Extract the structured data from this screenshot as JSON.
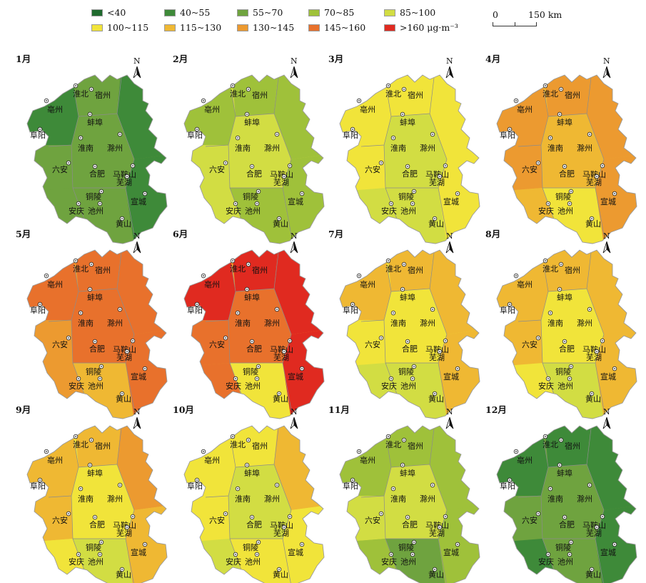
{
  "legend": {
    "items": [
      {
        "label": "<40",
        "color": "#1f6a2e"
      },
      {
        "label": "40~55",
        "color": "#3e8a39"
      },
      {
        "label": "55~70",
        "color": "#6fa33f"
      },
      {
        "label": "70~85",
        "color": "#9fc13a"
      },
      {
        "label": "85~100",
        "color": "#d2dd43"
      },
      {
        "label": "100~115",
        "color": "#f1e43a"
      },
      {
        "label": "115~130",
        "color": "#efb833"
      },
      {
        "label": "130~145",
        "color": "#ec9a30"
      },
      {
        "label": "145~160",
        "color": "#e8712c"
      },
      {
        "label": ">160 μg·m⁻³",
        "color": "#e02a20"
      }
    ]
  },
  "scale_bar": {
    "start": "0",
    "end": "150 km"
  },
  "north_label": "N",
  "cities": [
    "亳州",
    "淮北",
    "宿州",
    "阜阳",
    "蚌埠",
    "淮南",
    "滁州",
    "六安",
    "合肥",
    "马鞍山",
    "芜湖",
    "铜陵",
    "宣城",
    "安庆",
    "池州",
    "黄山"
  ],
  "months": [
    {
      "label": "1月",
      "base": 2,
      "zones": [
        1,
        2,
        1,
        2,
        2,
        1,
        2,
        2
      ]
    },
    {
      "label": "2月",
      "base": 4,
      "zones": [
        3,
        3,
        3,
        4,
        4,
        3,
        4,
        3
      ]
    },
    {
      "label": "3月",
      "base": 5,
      "zones": [
        5,
        5,
        5,
        5,
        4,
        5,
        4,
        4
      ]
    },
    {
      "label": "4月",
      "base": 6,
      "zones": [
        7,
        7,
        7,
        7,
        6,
        7,
        6,
        5
      ]
    },
    {
      "label": "5月",
      "base": 7,
      "zones": [
        8,
        8,
        8,
        7,
        8,
        8,
        7,
        6
      ]
    },
    {
      "label": "6月",
      "base": 7,
      "zones": [
        9,
        9,
        9,
        8,
        8,
        9,
        8,
        5
      ]
    },
    {
      "label": "7月",
      "base": 5,
      "zones": [
        6,
        6,
        6,
        5,
        5,
        6,
        4,
        4
      ]
    },
    {
      "label": "8月",
      "base": 6,
      "zones": [
        6,
        6,
        6,
        6,
        5,
        6,
        5,
        4
      ]
    },
    {
      "label": "9月",
      "base": 5,
      "zones": [
        6,
        6,
        7,
        6,
        5,
        6,
        5,
        4
      ]
    },
    {
      "label": "10月",
      "base": 5,
      "zones": [
        5,
        5,
        6,
        5,
        4,
        5,
        4,
        5
      ]
    },
    {
      "label": "11月",
      "base": 3,
      "zones": [
        3,
        3,
        3,
        4,
        4,
        3,
        3,
        2
      ]
    },
    {
      "label": "12月",
      "base": 2,
      "zones": [
        1,
        1,
        1,
        2,
        2,
        1,
        1,
        2
      ]
    }
  ]
}
